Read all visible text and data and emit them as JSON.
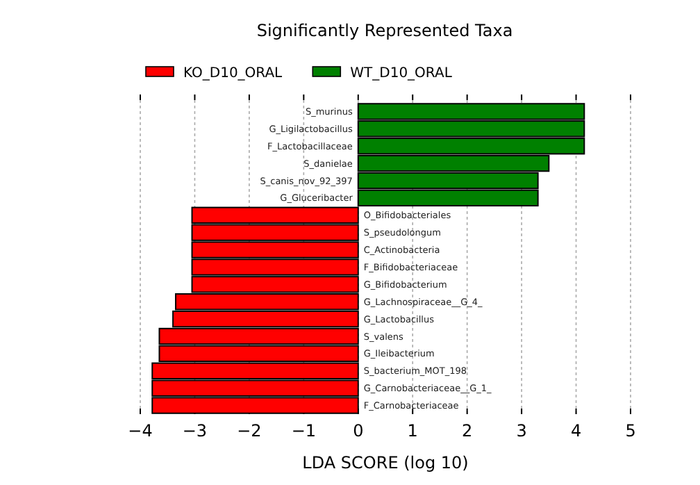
{
  "chart_data": {
    "type": "bar",
    "orientation": "horizontal",
    "title": "Significantly Represented Taxa",
    "xlabel": "LDA SCORE (log 10)",
    "categories": [
      "S_murinus",
      "G_Ligilactobacillus",
      "F_Lactobacillaceae",
      "S_danielae",
      "S_canis_nov_92_397",
      "G_Gluceribacter",
      "O_Bifidobacteriales",
      "S_pseudolongum",
      "C_Actinobacteria",
      "F_Bifidobacteriaceae",
      "G_Bifidobacterium",
      "G_Lachnospiraceae__G_4_",
      "G_Lactobacillus",
      "S_valens",
      "G_Ileibacterium",
      "S_bacterium_MOT_198",
      "G_Carnobacteriaceae__G_1_",
      "F_Carnobacteriaceae"
    ],
    "series": [
      {
        "name": "KO_D10_ORAL",
        "color": "#ff0000",
        "values": [
          null,
          null,
          null,
          null,
          null,
          null,
          -3.05,
          -3.05,
          -3.05,
          -3.05,
          -3.05,
          -3.35,
          -3.4,
          -3.65,
          -3.65,
          -3.78,
          -3.78,
          -3.78
        ]
      },
      {
        "name": "WT_D10_ORAL",
        "color": "#008000",
        "values": [
          4.15,
          4.15,
          4.15,
          3.5,
          3.3,
          3.3,
          null,
          null,
          null,
          null,
          null,
          null,
          null,
          null,
          null,
          null,
          null,
          null
        ]
      }
    ],
    "xlim": [
      -4,
      5
    ],
    "xticks": [
      {
        "value": -4,
        "label": "−4"
      },
      {
        "value": -3,
        "label": "−3"
      },
      {
        "value": -2,
        "label": "−2"
      },
      {
        "value": -1,
        "label": "−1"
      },
      0,
      1,
      2,
      3,
      4,
      5
    ],
    "grid": "x",
    "legend": "top"
  }
}
